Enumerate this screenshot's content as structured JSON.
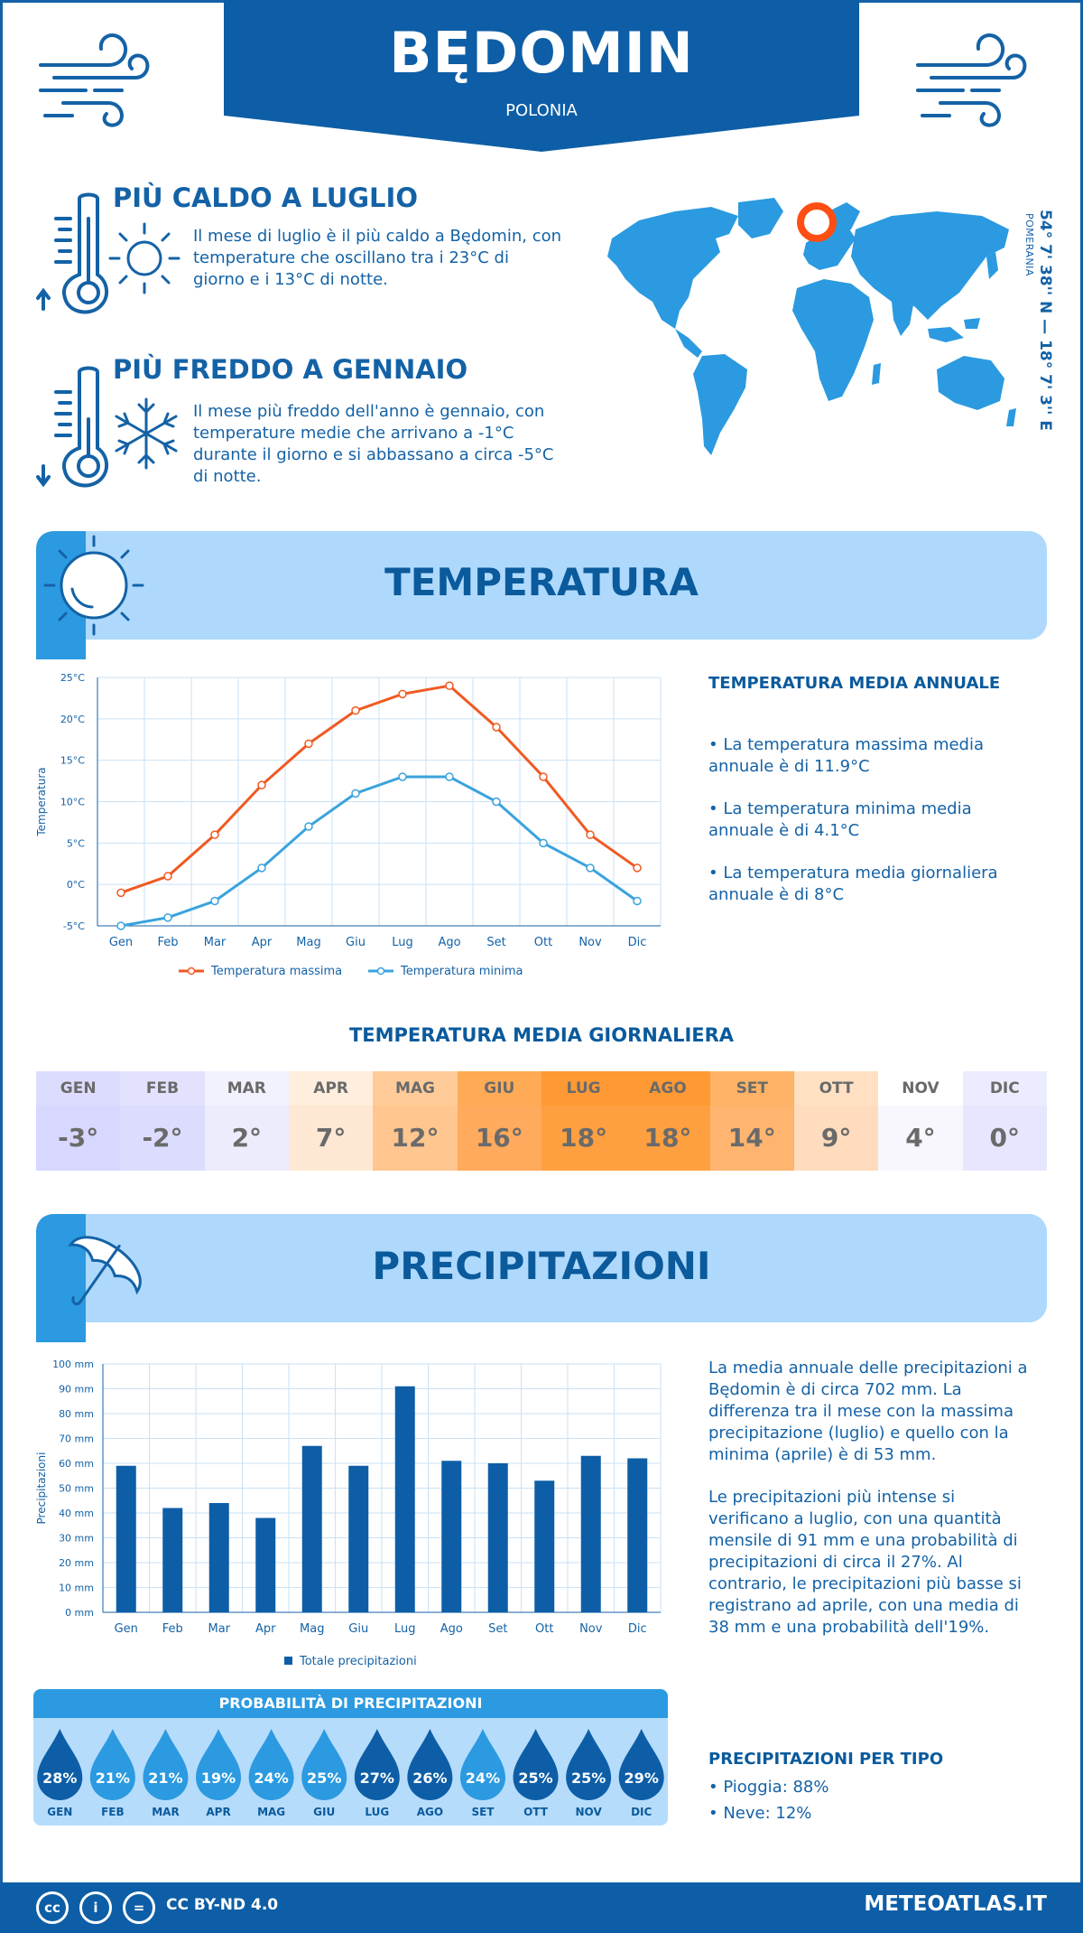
{
  "header": {
    "city": "BĘDOMIN",
    "country": "POLONIA"
  },
  "location": {
    "coordinates": "54° 7' 38'' N — 18° 7' 3'' E",
    "region": "POMERANIA"
  },
  "facts": {
    "hottest": {
      "title": "PIÙ CALDO A LUGLIO",
      "text": "Il mese di luglio è il più caldo a Będomin, con temperature che oscillano tra i 23°C di giorno e i 13°C di notte."
    },
    "coldest": {
      "title": "PIÙ FREDDO A GENNAIO",
      "text": "Il mese più freddo dell'anno è gennaio, con temperature medie che arrivano a -1°C durante il giorno e si abbassano a circa -5°C di notte."
    }
  },
  "temperature": {
    "section_title": "TEMPERATURA",
    "side_title": "TEMPERATURA MEDIA ANNUALE",
    "bullets": [
      "• La temperatura massima media annuale è di 11.9°C",
      "• La temperatura minima media annuale è di 4.1°C",
      "• La temperatura media giornaliera annuale è di 8°C"
    ],
    "daily_title": "TEMPERATURA MEDIA GIORNALIERA",
    "daily": [
      {
        "month": "GEN",
        "value": "-3°",
        "bg": "#dcdcff",
        "val_bg": "#d7d7ff"
      },
      {
        "month": "FEB",
        "value": "-2°",
        "bg": "#e2e2ff",
        "val_bg": "#dcdcff"
      },
      {
        "month": "MAR",
        "value": "2°",
        "bg": "#f2f2ff",
        "val_bg": "#ececfd"
      },
      {
        "month": "APR",
        "value": "7°",
        "bg": "#ffeedd",
        "val_bg": "#ffe8d3"
      },
      {
        "month": "MAG",
        "value": "12°",
        "bg": "#ffcc99",
        "val_bg": "#ffc68f"
      },
      {
        "month": "GIU",
        "value": "16°",
        "bg": "#ffaa55",
        "val_bg": "#ffaa5c"
      },
      {
        "month": "LUG",
        "value": "18°",
        "bg": "#ff9933",
        "val_bg": "#ffa040"
      },
      {
        "month": "AGO",
        "value": "18°",
        "bg": "#ff9933",
        "val_bg": "#ffa040"
      },
      {
        "month": "SET",
        "value": "14°",
        "bg": "#ffb366",
        "val_bg": "#ffb570"
      },
      {
        "month": "OTT",
        "value": "9°",
        "bg": "#ffe0c2",
        "val_bg": "#ffdcbd"
      },
      {
        "month": "NOV",
        "value": "4°",
        "bg": "#ffffff",
        "val_bg": "#f7f7fd"
      },
      {
        "month": "DIC",
        "value": "0°",
        "bg": "#ececff",
        "val_bg": "#e6e6ff"
      }
    ]
  },
  "precipitation": {
    "section_title": "PRECIPITAZIONI",
    "text1": "La media annuale delle precipitazioni a Będomin è di circa 702 mm. La differenza tra il mese con la massima precipitazione (luglio) e quello con la minima (aprile) è di 53 mm.",
    "text2": "Le precipitazioni più intense si verificano a luglio, con una quantità mensile di 91 mm e una probabilità di precipitazioni di circa il 27%. Al contrario, le precipitazioni più basse si registrano ad aprile, con una media di 38 mm e una probabilità dell'19%.",
    "prob_title": "PROBABILITÀ DI PRECIPITAZIONI",
    "probabilities": [
      {
        "month": "GEN",
        "value": "28%",
        "color": "#0d5ea6"
      },
      {
        "month": "FEB",
        "value": "21%",
        "color": "#2b9ae0"
      },
      {
        "month": "MAR",
        "value": "21%",
        "color": "#2b9ae0"
      },
      {
        "month": "APR",
        "value": "19%",
        "color": "#2b9ae0"
      },
      {
        "month": "MAG",
        "value": "24%",
        "color": "#2b9ae0"
      },
      {
        "month": "GIU",
        "value": "25%",
        "color": "#2b9ae0"
      },
      {
        "month": "LUG",
        "value": "27%",
        "color": "#0d5ea6"
      },
      {
        "month": "AGO",
        "value": "26%",
        "color": "#0d5ea6"
      },
      {
        "month": "SET",
        "value": "24%",
        "color": "#2b9ae0"
      },
      {
        "month": "OTT",
        "value": "25%",
        "color": "#0d5ea6"
      },
      {
        "month": "NOV",
        "value": "25%",
        "color": "#0d5ea6"
      },
      {
        "month": "DIC",
        "value": "29%",
        "color": "#0d5ea6"
      }
    ],
    "type_title": "PRECIPITAZIONI PER TIPO",
    "types": [
      "• Pioggia: 88%",
      "• Neve: 12%"
    ]
  },
  "footer": {
    "license": "CC BY-ND 4.0",
    "site": "METEOATLAS.IT"
  },
  "chart_data": [
    {
      "type": "line",
      "categories": [
        "Gen",
        "Feb",
        "Mar",
        "Apr",
        "Mag",
        "Giu",
        "Lug",
        "Ago",
        "Set",
        "Ott",
        "Nov",
        "Dic"
      ],
      "series": [
        {
          "name": "Temperatura massima",
          "values": [
            -1,
            1,
            6,
            12,
            17,
            21,
            23,
            24,
            19,
            13,
            6,
            2
          ],
          "color": "#f05a22"
        },
        {
          "name": "Temperatura minima",
          "values": [
            -5,
            -4,
            -2,
            2,
            7,
            11,
            13,
            13,
            10,
            5,
            2,
            -2
          ],
          "color": "#3aa3dd"
        }
      ],
      "ylabel": "Temperatura",
      "ylim": [
        -5,
        25
      ],
      "yticks": [
        "-5°C",
        "0°C",
        "5°C",
        "10°C",
        "15°C",
        "20°C",
        "25°C"
      ],
      "grid": true,
      "legend": "bottom"
    },
    {
      "type": "bar",
      "categories": [
        "Gen",
        "Feb",
        "Mar",
        "Apr",
        "Mag",
        "Giu",
        "Lug",
        "Ago",
        "Set",
        "Ott",
        "Nov",
        "Dic"
      ],
      "series": [
        {
          "name": "Totale precipitazioni",
          "values": [
            59,
            42,
            44,
            38,
            67,
            59,
            91,
            61,
            60,
            53,
            63,
            62
          ],
          "color": "#0d5ea6"
        }
      ],
      "ylabel": "Precipitazioni",
      "ylim": [
        0,
        100
      ],
      "yticks": [
        "0 mm",
        "10 mm",
        "20 mm",
        "30 mm",
        "40 mm",
        "50 mm",
        "60 mm",
        "70 mm",
        "80 mm",
        "90 mm",
        "100 mm"
      ],
      "grid": true,
      "legend": "bottom"
    }
  ]
}
